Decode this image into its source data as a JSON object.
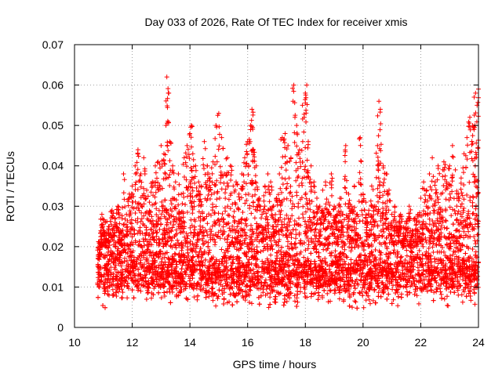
{
  "chart_data": {
    "type": "scatter",
    "title": "Day 033 of 2026, Rate Of TEC Index for receiver xmis",
    "xlabel": "GPS time / hours",
    "ylabel": "ROTI / TECUs",
    "xlim": [
      10,
      24
    ],
    "ylim": [
      0,
      0.07
    ],
    "x_ticks": [
      10,
      12,
      14,
      16,
      18,
      20,
      22,
      24
    ],
    "x_tick_labels": [
      "10",
      "12",
      "14",
      "16",
      "18",
      "20",
      "22",
      "24"
    ],
    "y_ticks": [
      0,
      0.01,
      0.02,
      0.03,
      0.04,
      0.05,
      0.06,
      0.07
    ],
    "y_tick_labels": [
      "0",
      "0.01",
      "0.02",
      "0.03",
      "0.04",
      "0.05",
      "0.06",
      "0.07"
    ],
    "grid": true,
    "marker": "+",
    "color": "#ff0000",
    "series": [
      {
        "name": "ROTI",
        "x": [
          10.85,
          10.9,
          10.95,
          11.0,
          11.1,
          11.2,
          11.3,
          11.4,
          11.5,
          11.6,
          11.7,
          11.8,
          11.9,
          12.0,
          12.1,
          12.2,
          12.3,
          12.4,
          12.5,
          12.6,
          12.7,
          12.8,
          12.9,
          13.0,
          13.1,
          13.15,
          13.2,
          13.25,
          13.3,
          13.4,
          13.5,
          13.6,
          13.7,
          13.8,
          13.9,
          14.0,
          14.05,
          14.1,
          14.2,
          14.3,
          14.4,
          14.5,
          14.6,
          14.7,
          14.8,
          14.9,
          15.0,
          15.1,
          15.2,
          15.3,
          15.4,
          15.5,
          15.6,
          15.7,
          15.8,
          15.9,
          16.0,
          16.1,
          16.15,
          16.2,
          16.3,
          16.4,
          16.5,
          16.6,
          16.7,
          16.8,
          16.9,
          17.0,
          17.1,
          17.2,
          17.3,
          17.4,
          17.5,
          17.6,
          17.7,
          17.8,
          17.9,
          18.0,
          18.05,
          18.1,
          18.2,
          18.3,
          18.4,
          18.5,
          18.6,
          18.7,
          18.8,
          18.9,
          19.0,
          19.1,
          19.2,
          19.3,
          19.4,
          19.5,
          19.6,
          19.7,
          19.8,
          19.9,
          20.0,
          20.1,
          20.2,
          20.3,
          20.4,
          20.5,
          20.55,
          20.6,
          20.7,
          20.8,
          20.9,
          21.0,
          21.1,
          21.2,
          21.3,
          21.4,
          21.5,
          21.6,
          21.7,
          21.8,
          21.9,
          22.0,
          22.1,
          22.2,
          22.3,
          22.4,
          22.5,
          22.6,
          22.7,
          22.8,
          22.9,
          23.0,
          23.1,
          23.2,
          23.3,
          23.4,
          23.5,
          23.6,
          23.7,
          23.8,
          23.85,
          23.9,
          23.95,
          24.0
        ],
        "y": [
          0.017,
          0.021,
          0.028,
          0.024,
          0.022,
          0.025,
          0.029,
          0.027,
          0.03,
          0.024,
          0.038,
          0.028,
          0.033,
          0.035,
          0.04,
          0.044,
          0.038,
          0.042,
          0.034,
          0.031,
          0.036,
          0.04,
          0.041,
          0.045,
          0.043,
          0.038,
          0.062,
          0.058,
          0.046,
          0.04,
          0.036,
          0.038,
          0.033,
          0.042,
          0.045,
          0.048,
          0.05,
          0.043,
          0.04,
          0.036,
          0.035,
          0.046,
          0.04,
          0.037,
          0.041,
          0.05,
          0.053,
          0.047,
          0.038,
          0.042,
          0.04,
          0.035,
          0.036,
          0.033,
          0.038,
          0.042,
          0.046,
          0.05,
          0.054,
          0.044,
          0.04,
          0.032,
          0.028,
          0.035,
          0.038,
          0.036,
          0.03,
          0.032,
          0.038,
          0.047,
          0.048,
          0.045,
          0.042,
          0.06,
          0.05,
          0.044,
          0.055,
          0.058,
          0.06,
          0.046,
          0.04,
          0.036,
          0.032,
          0.03,
          0.034,
          0.036,
          0.031,
          0.038,
          0.03,
          0.028,
          0.032,
          0.028,
          0.045,
          0.033,
          0.03,
          0.035,
          0.028,
          0.047,
          0.033,
          0.031,
          0.029,
          0.035,
          0.03,
          0.045,
          0.056,
          0.054,
          0.04,
          0.038,
          0.034,
          0.028,
          0.03,
          0.025,
          0.028,
          0.022,
          0.026,
          0.03,
          0.024,
          0.027,
          0.028,
          0.032,
          0.036,
          0.034,
          0.038,
          0.042,
          0.036,
          0.04,
          0.033,
          0.041,
          0.036,
          0.04,
          0.045,
          0.039,
          0.033,
          0.037,
          0.043,
          0.047,
          0.052,
          0.05,
          0.057,
          0.058,
          0.055,
          0.059
        ],
        "dense_band": {
          "x_range": [
            10.8,
            24.0
          ],
          "y_range": [
            0.004,
            0.022
          ],
          "typical": 0.011
        }
      }
    ]
  }
}
